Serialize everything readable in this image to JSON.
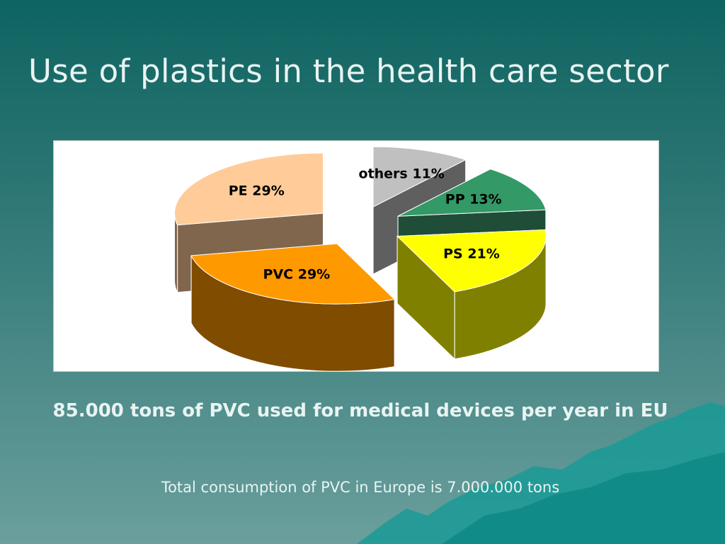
{
  "slide": {
    "title": "Use of plastics in the health care sector",
    "subtitle": "85.000 tons of PVC used for medical devices per year in EU",
    "footnote": "Total consumption of PVC in Europe is 7.000.000 tons"
  },
  "chart_data": {
    "type": "pie",
    "title": "",
    "slices": [
      {
        "name": "others",
        "value": 11,
        "label": "others 11%",
        "color": "#c0c0c0",
        "side_color": "#5f5f5f"
      },
      {
        "name": "PP",
        "value": 13,
        "label": "PP 13%",
        "color": "#339966",
        "side_color": "#1f4d38"
      },
      {
        "name": "PS",
        "value": 21,
        "label": "PS 21%",
        "color": "#ffff00",
        "side_color": "#808000"
      },
      {
        "name": "PVC",
        "value": 29,
        "label": "PVC 29%",
        "color": "#ff9900",
        "side_color": "#7f4c00"
      },
      {
        "name": "PE",
        "value": 29,
        "label": "PE 29%",
        "color": "#ffcc99",
        "side_color": "#80664d"
      }
    ],
    "style": "3d-exploded",
    "legend": "none"
  }
}
